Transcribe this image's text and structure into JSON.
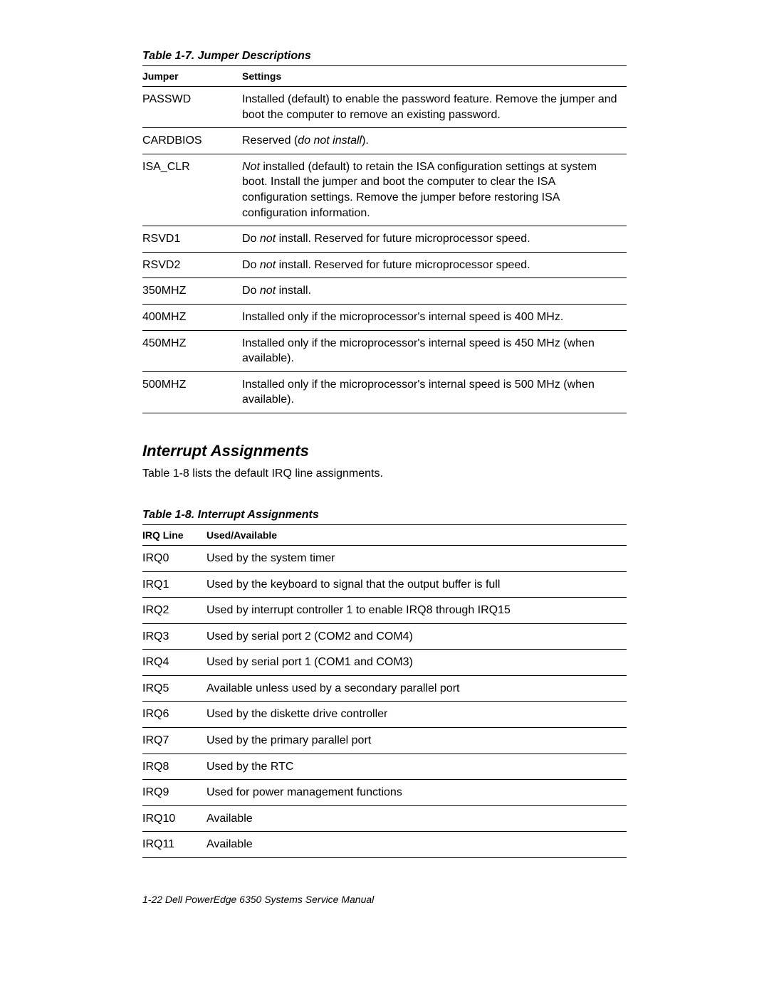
{
  "table1": {
    "caption": "Table 1-7.  Jumper Descriptions",
    "headers": [
      "Jumper",
      "Settings"
    ],
    "rows": [
      {
        "jumper": "PASSWD",
        "settings_html": "Installed (default) to enable the password feature. Remove the jumper and boot the computer to remove an existing password."
      },
      {
        "jumper": "CARDBIOS",
        "settings_html": "Reserved (<em class='it'>do not install</em>)."
      },
      {
        "jumper": "ISA_CLR",
        "settings_html": "<em class='it'>Not</em> installed (default) to retain the ISA configuration settings at system boot. Install the jumper and boot the computer to clear the ISA configuration settings. Remove the jumper before restoring ISA configuration information."
      },
      {
        "jumper": "RSVD1",
        "settings_html": "Do <em class='it'>not</em> install. Reserved for future microprocessor speed."
      },
      {
        "jumper": "RSVD2",
        "settings_html": "Do <em class='it'>not</em> install. Reserved for future microprocessor speed."
      },
      {
        "jumper": "350MHZ",
        "settings_html": "Do <em class='it'>not</em> install."
      },
      {
        "jumper": "400MHZ",
        "settings_html": "Installed only if the microprocessor's internal speed is 400 MHz."
      },
      {
        "jumper": "450MHZ",
        "settings_html": "Installed only if the microprocessor's internal speed is 450 MHz (when available)."
      },
      {
        "jumper": "500MHZ",
        "settings_html": "Installed only if the microprocessor's internal speed is 500 MHz (when available)."
      }
    ]
  },
  "section": {
    "heading": "Interrupt Assignments",
    "body": "Table 1-8 lists the default IRQ line assignments."
  },
  "table2": {
    "caption": "Table 1-8.  Interrupt Assignments",
    "headers": [
      "IRQ Line",
      "Used/Available"
    ],
    "rows": [
      {
        "irq": "IRQ0",
        "desc": "Used by the system timer"
      },
      {
        "irq": "IRQ1",
        "desc": "Used by the keyboard to signal that the output buffer is full"
      },
      {
        "irq": "IRQ2",
        "desc": "Used by interrupt controller 1 to enable IRQ8 through IRQ15"
      },
      {
        "irq": "IRQ3",
        "desc": "Used by serial port 2 (COM2 and COM4)"
      },
      {
        "irq": "IRQ4",
        "desc": "Used by serial port 1 (COM1 and COM3)"
      },
      {
        "irq": "IRQ5",
        "desc": "Available unless used by a secondary parallel port"
      },
      {
        "irq": "IRQ6",
        "desc": "Used by the diskette drive controller"
      },
      {
        "irq": "IRQ7",
        "desc": "Used by the primary parallel port"
      },
      {
        "irq": "IRQ8",
        "desc": "Used by the RTC"
      },
      {
        "irq": "IRQ9",
        "desc": "Used for power management functions"
      },
      {
        "irq": "IRQ10",
        "desc": "Available"
      },
      {
        "irq": "IRQ11",
        "desc": "Available"
      }
    ]
  },
  "footer": "1-22    Dell PowerEdge 6350 Systems Service Manual"
}
